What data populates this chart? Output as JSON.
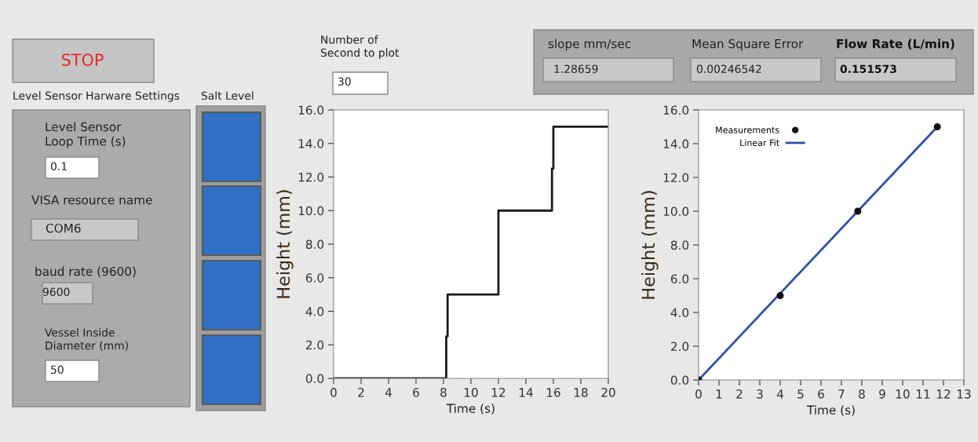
{
  "chart_data": [
    {
      "type": "other",
      "annotations": [
        "STOP",
        "Level Sensor Harware Settings",
        "Salt Level",
        "Level Sensor\nLoop Time (s)",
        "0.1",
        "VISA resource name",
        "COM6",
        "baud rate (9600)",
        "9600",
        "Vessel Inside\nDiameter (mm)",
        "50",
        "Number of\nSecond to plot",
        "30",
        "slope mm/sec",
        "1.28659",
        "Mean Square Error",
        "0.00246542",
        "Flow Rate (L/min)",
        "0.151573"
      ]
    },
    {
      "type": "step",
      "xlabel": "Time (s)",
      "ylabel": "Height (mm)",
      "grid": false,
      "legend": false,
      "series": [
        {
          "color": "#1a1a1a",
          "x": [
            0,
            8.2,
            8.3,
            12,
            15.9,
            16,
            20
          ],
          "values": [
            0,
            2.5,
            5,
            10,
            12.5,
            15,
            15
          ]
        }
      ],
      "xlim": [
        0,
        20
      ],
      "xticks": [
        0,
        2,
        4,
        6,
        8,
        10,
        12,
        14,
        16,
        18,
        20
      ],
      "ylim": [
        0,
        16
      ],
      "yticks": [
        {
          "value": 0,
          "label": "0.0"
        },
        {
          "value": 2,
          "label": "2.0"
        },
        {
          "value": 4,
          "label": "4.0"
        },
        {
          "value": 6,
          "label": "6.0"
        },
        {
          "value": 8,
          "label": "8.0"
        },
        {
          "value": 10,
          "label": "10.0"
        },
        {
          "value": 12,
          "label": "12.0"
        },
        {
          "value": 14,
          "label": "14.0"
        },
        {
          "value": 16,
          "label": "16.0"
        }
      ]
    },
    {
      "type": "scatter",
      "xlabel": "Time (s)",
      "ylabel": "Height (mm)",
      "grid": false,
      "legend": "top left",
      "series": [
        {
          "name": "Measurements",
          "type": "scatter",
          "color": "#111111",
          "marker": "circle",
          "x": [
            0,
            4,
            7.8,
            11.7
          ],
          "values": [
            0,
            5,
            10,
            15
          ]
        },
        {
          "name": "Linear Fit",
          "type": "line",
          "color": "#2f50a8",
          "x": [
            0,
            11.7
          ],
          "values": [
            0,
            15
          ]
        }
      ],
      "xlim": [
        0,
        13
      ],
      "xticks": [
        0,
        1,
        2,
        3,
        4,
        5,
        6,
        7,
        8,
        9,
        10,
        11,
        12,
        13
      ],
      "ylim": [
        0,
        16
      ],
      "yticks": [
        {
          "value": 0,
          "label": "0.0"
        },
        {
          "value": 2,
          "label": "2.0"
        },
        {
          "value": 4,
          "label": "4.0"
        },
        {
          "value": 6,
          "label": "6.0"
        },
        {
          "value": 8,
          "label": "8.0"
        },
        {
          "value": 10,
          "label": "10.0"
        },
        {
          "value": 12,
          "label": "12.0"
        },
        {
          "value": 14,
          "label": "14.0"
        },
        {
          "value": 16,
          "label": "16.0"
        }
      ]
    }
  ]
}
